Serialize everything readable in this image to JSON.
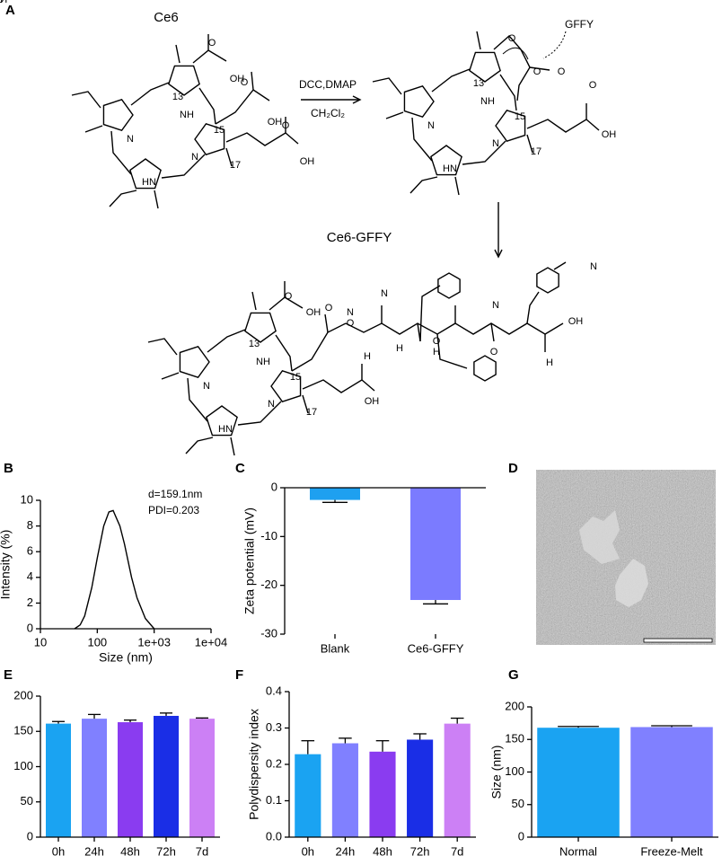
{
  "panels": {
    "a": "A",
    "b": "B",
    "c": "C",
    "d": "D",
    "e": "E",
    "f": "F",
    "g": "G"
  },
  "scheme": {
    "reactant": "Ce6",
    "reagent": "DCC,DMAP",
    "solvent": "CH₂Cl₂",
    "attacker": "GFFY",
    "product": "Ce6-GFFY",
    "structures": [
      {
        "labels": [
          "N",
          "NH",
          "HN",
          "N",
          "13",
          "15",
          "17",
          "O",
          "OH",
          "O",
          "OH",
          "O",
          "OH"
        ]
      },
      {
        "labels": [
          "N",
          "NH",
          "HN",
          "N",
          "13",
          "15",
          "17",
          "O",
          "O",
          "O",
          "O",
          "OH"
        ]
      },
      {
        "labels": [
          "N",
          "NH",
          "HN",
          "N",
          "13",
          "15",
          "17",
          "O",
          "OH",
          "O",
          "OH",
          "H",
          "N",
          "O",
          "N",
          "H",
          "O",
          "H",
          "N",
          "O",
          "N",
          "H",
          "OH",
          "O",
          "OH"
        ]
      }
    ]
  },
  "chart_data": [
    {
      "type": "line",
      "x": [
        40,
        50,
        60,
        80,
        100,
        130,
        160,
        190,
        250,
        300,
        400,
        500,
        700,
        1000
      ],
      "values": [
        0,
        0.3,
        1,
        3.2,
        5.5,
        8,
        9.1,
        9.2,
        8,
        6.6,
        4,
        2.4,
        0.8,
        0
      ],
      "color": "#000000",
      "xscale": "log",
      "xlim": [
        10,
        10000
      ],
      "ylim": [
        0,
        10
      ],
      "xticks": [
        10,
        100,
        {
          "value": 1000,
          "label": "1e+03"
        },
        {
          "value": 10000,
          "label": "1e+04"
        }
      ],
      "yticks": [
        0,
        2,
        4,
        6,
        8,
        10
      ],
      "xlabel": "Size (nm)",
      "ylabel": "Intensity (%)",
      "annotations": [
        "d=159.1nm",
        "PDI=0.203"
      ]
    },
    {
      "type": "bar",
      "categories": [
        "Blank",
        "Ce6-GFFY"
      ],
      "values": [
        -2.5,
        -23
      ],
      "errors": [
        0.5,
        0.8
      ],
      "colors": [
        "#1ea0f0",
        "#7b7bff"
      ],
      "ylim": [
        -30,
        0
      ],
      "yticks": [
        0,
        -10,
        -20,
        -30
      ],
      "ylabel": "Zeta potential (mV)"
    },
    {
      "type": "bar",
      "categories": [
        "0h",
        "24h",
        "48h",
        "72h",
        "7d"
      ],
      "values": [
        161,
        168,
        163,
        172,
        168
      ],
      "errors": [
        3,
        6,
        3,
        4,
        1
      ],
      "colors": [
        "#1aa3f2",
        "#8080ff",
        "#8a3cf0",
        "#1a2ee6",
        "#cc80f5"
      ],
      "ylim": [
        0,
        200
      ],
      "yticks": [
        0,
        50,
        100,
        150,
        200
      ]
    },
    {
      "type": "bar",
      "categories": [
        "0h",
        "24h",
        "48h",
        "72h",
        "7d"
      ],
      "values": [
        0.228,
        0.258,
        0.235,
        0.268,
        0.312
      ],
      "errors": [
        0.037,
        0.014,
        0.03,
        0.016,
        0.015
      ],
      "colors": [
        "#1aa3f2",
        "#8080ff",
        "#8a3cf0",
        "#1a2ee6",
        "#cc80f5"
      ],
      "ylim": [
        0,
        0.4
      ],
      "yticks": [
        {
          "value": 0,
          "label": "0.0"
        },
        0.1,
        0.2,
        0.3,
        0.4
      ],
      "ylabel": "Polydispersity index"
    },
    {
      "type": "bar",
      "categories": [
        "Normal",
        "Freeze-Melt"
      ],
      "values": [
        168,
        169
      ],
      "errors": [
        2,
        2
      ],
      "colors": [
        "#1aa3f2",
        "#8080ff"
      ],
      "ylim": [
        0,
        200
      ],
      "yticks": [
        0,
        50,
        100,
        150,
        200
      ],
      "ylabel": "Size (nm)"
    }
  ]
}
